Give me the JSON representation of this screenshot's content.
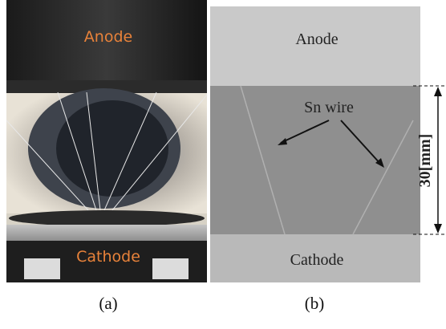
{
  "panels": [
    {
      "label": "(a)",
      "anode": "Anode",
      "cathode": "Cathode"
    },
    {
      "label": "(b)",
      "anode": "Anode",
      "wire": "Sn wire",
      "cathode": "Cathode",
      "dimension": "30[mm]"
    }
  ]
}
